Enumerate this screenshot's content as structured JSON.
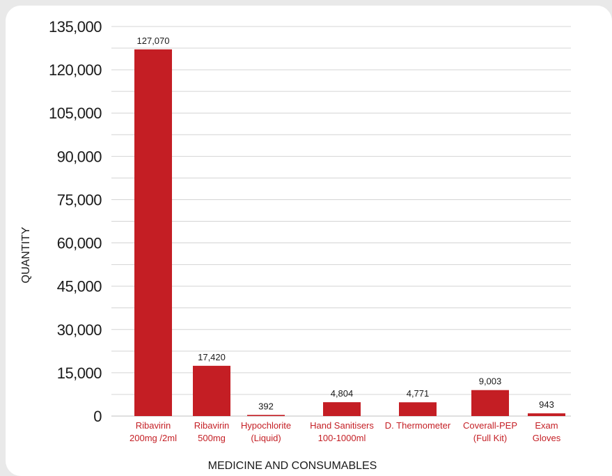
{
  "chart_data": {
    "type": "bar",
    "xlabel": "MEDICINE AND CONSUMABLES",
    "ylabel": "QUANTITY",
    "ylim": [
      0,
      135000
    ],
    "yticks": [
      "0",
      "15,000",
      "30,000",
      "45,000",
      "60,000",
      "75,000",
      "90,000",
      "105,000",
      "120,000",
      "135,000"
    ],
    "ytick_values": [
      0,
      15000,
      30000,
      45000,
      60000,
      75000,
      90000,
      105000,
      120000,
      135000
    ],
    "grid": true,
    "categories": [
      [
        "Ribavirin",
        "200mg /2ml"
      ],
      [
        "Ribavirin",
        "500mg"
      ],
      [
        "Hypochlorite",
        "(Liquid)"
      ],
      [
        "Hand Sanitisers",
        "100-1000ml"
      ],
      [
        "D. Thermometer"
      ],
      [
        "Coverall-PEP",
        "(Full Kit)"
      ],
      [
        "Exam",
        "Gloves"
      ]
    ],
    "values": [
      127070,
      17420,
      392,
      4804,
      4771,
      9003,
      943
    ],
    "value_labels": [
      "127,070",
      "17,420",
      "392",
      "4,804",
      "4,771",
      "9,003",
      "943"
    ],
    "colors": {
      "bar": "#c41e24",
      "category_text": "#c41e24",
      "grid": "#d4d4d4",
      "axis": "#bfbfbf"
    }
  }
}
